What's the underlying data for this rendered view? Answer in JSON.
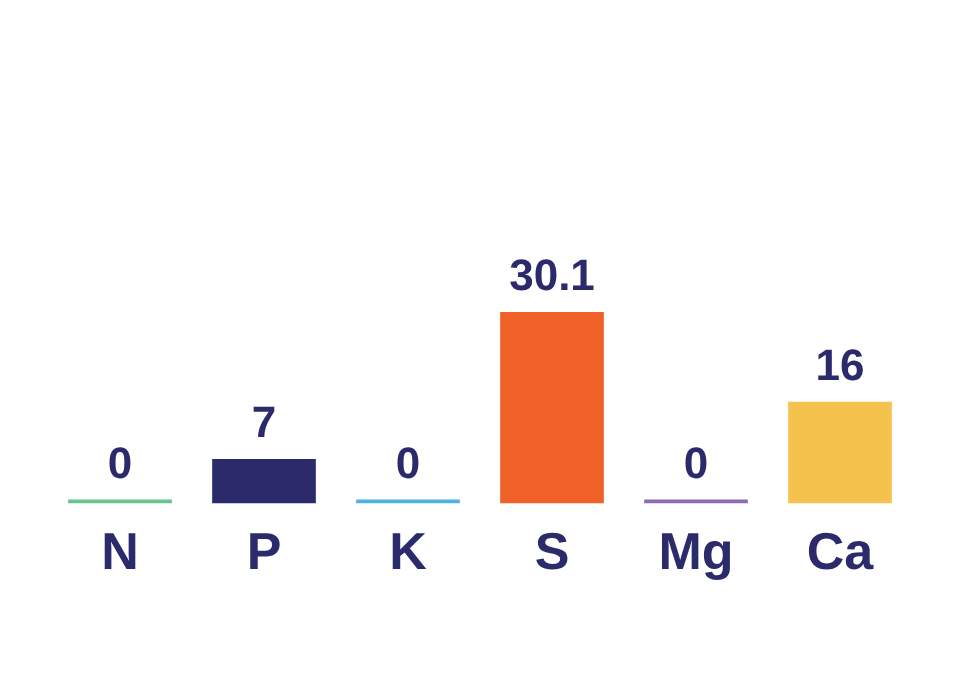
{
  "chart_data": {
    "type": "bar",
    "categories": [
      "N",
      "P",
      "K",
      "S",
      "Mg",
      "Ca"
    ],
    "values": [
      0,
      7,
      0,
      30.1,
      0,
      16
    ],
    "colors": [
      "#6cc28f",
      "#2b2a6b",
      "#4db3e2",
      "#ef6129",
      "#8e6bb5",
      "#f5c34d"
    ],
    "data_labels": true
  }
}
